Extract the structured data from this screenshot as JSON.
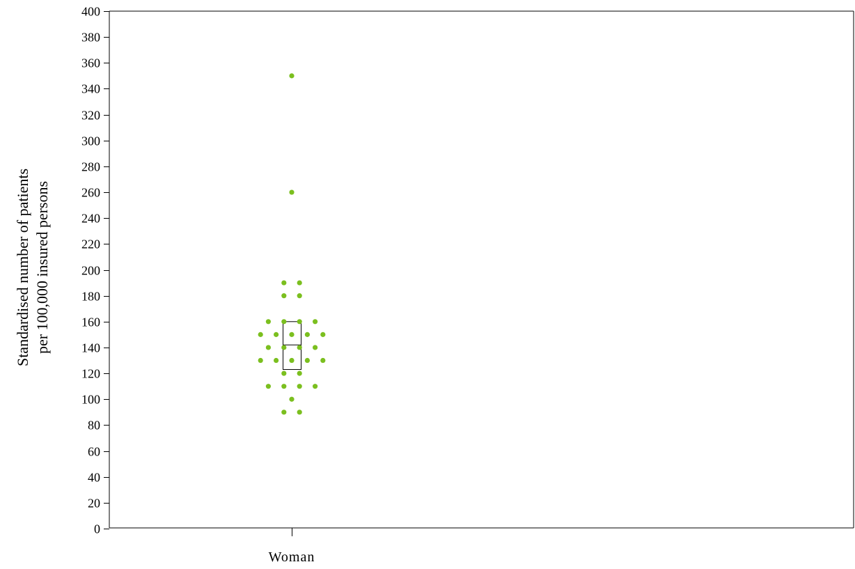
{
  "chart_data": {
    "type": "scatter",
    "subtype": "dot-plot with box",
    "title": "",
    "xlabel": "",
    "ylabel_lines": [
      "Standardised number of patients",
      "per 100,000 insured persons"
    ],
    "categories": [
      "Woman"
    ],
    "ylim": [
      0,
      400
    ],
    "yticks": [
      0,
      20,
      40,
      60,
      80,
      100,
      120,
      140,
      160,
      180,
      200,
      220,
      240,
      260,
      280,
      300,
      320,
      340,
      360,
      380,
      400
    ],
    "grid": false,
    "legend": "none",
    "marker_color": "#7bbf1f",
    "box": {
      "category": "Woman",
      "q1": 123,
      "median": 142,
      "q3": 160
    },
    "points": [
      {
        "category": "Woman",
        "value": 350,
        "offset": 0
      },
      {
        "category": "Woman",
        "value": 260,
        "offset": 0
      },
      {
        "category": "Woman",
        "value": 190,
        "offset": -1
      },
      {
        "category": "Woman",
        "value": 190,
        "offset": 1
      },
      {
        "category": "Woman",
        "value": 180,
        "offset": -1
      },
      {
        "category": "Woman",
        "value": 180,
        "offset": 1
      },
      {
        "category": "Woman",
        "value": 160,
        "offset": -3
      },
      {
        "category": "Woman",
        "value": 160,
        "offset": -1
      },
      {
        "category": "Woman",
        "value": 160,
        "offset": 1
      },
      {
        "category": "Woman",
        "value": 160,
        "offset": 3
      },
      {
        "category": "Woman",
        "value": 150,
        "offset": -4
      },
      {
        "category": "Woman",
        "value": 150,
        "offset": -2
      },
      {
        "category": "Woman",
        "value": 150,
        "offset": 0
      },
      {
        "category": "Woman",
        "value": 150,
        "offset": 2
      },
      {
        "category": "Woman",
        "value": 150,
        "offset": 4
      },
      {
        "category": "Woman",
        "value": 140,
        "offset": -3
      },
      {
        "category": "Woman",
        "value": 140,
        "offset": -1
      },
      {
        "category": "Woman",
        "value": 140,
        "offset": 1
      },
      {
        "category": "Woman",
        "value": 140,
        "offset": 3
      },
      {
        "category": "Woman",
        "value": 130,
        "offset": -4
      },
      {
        "category": "Woman",
        "value": 130,
        "offset": -2
      },
      {
        "category": "Woman",
        "value": 130,
        "offset": 0
      },
      {
        "category": "Woman",
        "value": 130,
        "offset": 2
      },
      {
        "category": "Woman",
        "value": 130,
        "offset": 4
      },
      {
        "category": "Woman",
        "value": 120,
        "offset": -1
      },
      {
        "category": "Woman",
        "value": 120,
        "offset": 1
      },
      {
        "category": "Woman",
        "value": 110,
        "offset": -3
      },
      {
        "category": "Woman",
        "value": 110,
        "offset": -1
      },
      {
        "category": "Woman",
        "value": 110,
        "offset": 1
      },
      {
        "category": "Woman",
        "value": 110,
        "offset": 3
      },
      {
        "category": "Woman",
        "value": 100,
        "offset": 0
      },
      {
        "category": "Woman",
        "value": 90,
        "offset": -1
      },
      {
        "category": "Woman",
        "value": 90,
        "offset": 1
      }
    ]
  }
}
